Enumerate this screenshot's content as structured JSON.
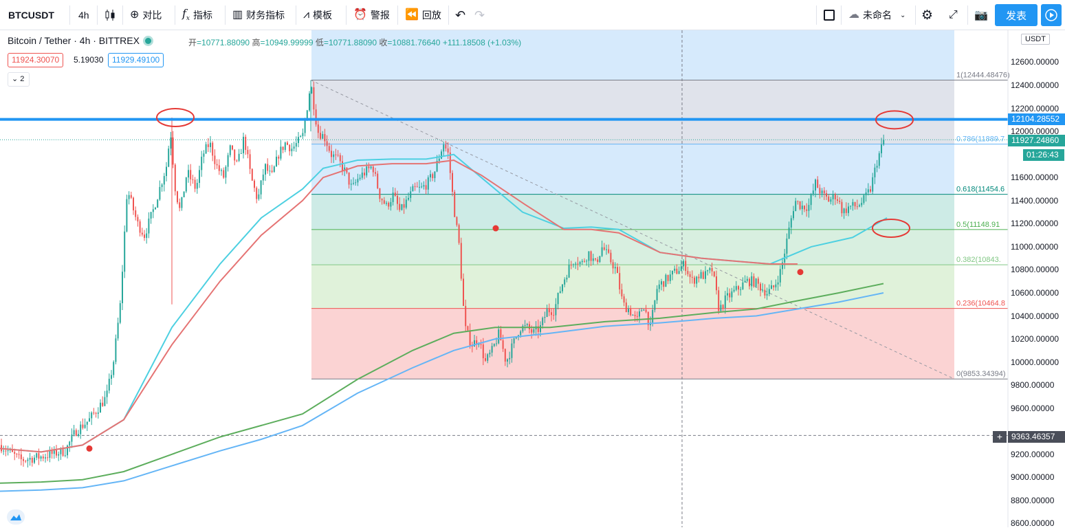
{
  "toolbar": {
    "symbol": "BTCUSDT",
    "interval": "4h",
    "compare": "对比",
    "indicators": "指标",
    "financials": "财务指标",
    "templates": "模板",
    "alert": "警报",
    "replay": "回放",
    "layout_name": "未命名",
    "publish": "发表"
  },
  "legend": {
    "title": "Bitcoin / Tether · 4h · BITTREX",
    "open_label": "开",
    "open": "10771.88090",
    "high_label": "高",
    "high": "10949.99999",
    "low_label": "低",
    "low": "10771.88090",
    "close_label": "收",
    "close": "10881.76640",
    "change": "+111.18508 (+1.03%)",
    "bid": "11924.30070",
    "spread": "5.19030",
    "ask": "11929.49100",
    "collapse": "2"
  },
  "price_axis": {
    "currency": "USDT",
    "labels": [
      "12600.00000",
      "12400.00000",
      "12200.00000",
      "12000.00000",
      "11600.00000",
      "11400.00000",
      "11200.00000",
      "11000.00000",
      "10800.00000",
      "10600.00000",
      "10400.00000",
      "10200.00000",
      "10000.00000",
      "9800.00000",
      "9600.00000",
      "9200.00000",
      "9000.00000",
      "8800.00000",
      "8600.00000"
    ],
    "horizontal_line": "12104.28552",
    "last_price": "11927.24860",
    "countdown": "01:26:43",
    "crosshair": "9363.46357"
  },
  "fib_labels": [
    "1(12444.48476)",
    "0.786(11889.7",
    "0.618(11454.6",
    "0.5(11148.91",
    "0.382(10843.",
    "0.236(10464.8",
    "0(9853.34394)"
  ],
  "chart_data": {
    "type": "candlestick",
    "symbol": "Bitcoin / Tether",
    "interval": "4h",
    "exchange": "BITTREX",
    "ylim": [
      8600,
      12700
    ],
    "last_bar": {
      "open": 10771.8809,
      "high": 10949.99999,
      "low": 10771.8809,
      "close": 10881.7664
    },
    "last_price": 11927.2486,
    "horizontal_line": 12104.28552,
    "crosshair_price": 9363.46357,
    "fib_retracement": {
      "high": 12444.48476,
      "low": 9853.34394,
      "levels": [
        {
          "ratio": 1,
          "price": 12444.48476
        },
        {
          "ratio": 0.786,
          "price": 11889.7
        },
        {
          "ratio": 0.618,
          "price": 11454.6
        },
        {
          "ratio": 0.5,
          "price": 11148.91
        },
        {
          "ratio": 0.382,
          "price": 10843.0
        },
        {
          "ratio": 0.236,
          "price": 10464.8
        },
        {
          "ratio": 0,
          "price": 9853.34394
        }
      ]
    },
    "price_path": [
      [
        0,
        9280
      ],
      [
        30,
        9150
      ],
      [
        60,
        9180
      ],
      [
        95,
        9230
      ],
      [
        110,
        9400
      ],
      [
        130,
        9500
      ],
      [
        155,
        9700
      ],
      [
        165,
        10000
      ],
      [
        175,
        10500
      ],
      [
        180,
        11000
      ],
      [
        185,
        11500
      ],
      [
        200,
        11200
      ],
      [
        210,
        11100
      ],
      [
        222,
        11300
      ],
      [
        232,
        11500
      ],
      [
        242,
        11700
      ],
      [
        248,
        12000
      ],
      [
        255,
        11500
      ],
      [
        262,
        11300
      ],
      [
        272,
        11650
      ],
      [
        285,
        11500
      ],
      [
        295,
        11800
      ],
      [
        305,
        11900
      ],
      [
        315,
        11700
      ],
      [
        325,
        11600
      ],
      [
        335,
        11850
      ],
      [
        345,
        11700
      ],
      [
        355,
        11950
      ],
      [
        365,
        11600
      ],
      [
        375,
        11400
      ],
      [
        385,
        11700
      ],
      [
        395,
        11600
      ],
      [
        405,
        11800
      ],
      [
        415,
        11900
      ],
      [
        425,
        11850
      ],
      [
        440,
        11950
      ],
      [
        452,
        12420
      ],
      [
        462,
        12000
      ],
      [
        472,
        11950
      ],
      [
        482,
        11800
      ],
      [
        492,
        11750
      ],
      [
        502,
        11650
      ],
      [
        512,
        11500
      ],
      [
        522,
        11600
      ],
      [
        532,
        11650
      ],
      [
        542,
        11700
      ],
      [
        552,
        11450
      ],
      [
        562,
        11350
      ],
      [
        572,
        11450
      ],
      [
        582,
        11300
      ],
      [
        592,
        11400
      ],
      [
        602,
        11500
      ],
      [
        612,
        11500
      ],
      [
        622,
        11550
      ],
      [
        632,
        11650
      ],
      [
        645,
        11900
      ],
      [
        652,
        11800
      ],
      [
        660,
        11350
      ],
      [
        668,
        11000
      ],
      [
        676,
        10300
      ],
      [
        686,
        10150
      ],
      [
        696,
        10200
      ],
      [
        706,
        10000
      ],
      [
        716,
        10100
      ],
      [
        726,
        10250
      ],
      [
        736,
        10000
      ],
      [
        746,
        10150
      ],
      [
        756,
        10300
      ],
      [
        766,
        10300
      ],
      [
        776,
        10250
      ],
      [
        786,
        10300
      ],
      [
        796,
        10450
      ],
      [
        806,
        10450
      ],
      [
        816,
        10650
      ],
      [
        826,
        10800
      ],
      [
        836,
        10900
      ],
      [
        846,
        10850
      ],
      [
        856,
        10950
      ],
      [
        866,
        10850
      ],
      [
        876,
        11000
      ],
      [
        886,
        10900
      ],
      [
        896,
        10800
      ],
      [
        906,
        10500
      ],
      [
        916,
        10450
      ],
      [
        926,
        10350
      ],
      [
        936,
        10500
      ],
      [
        946,
        10300
      ],
      [
        956,
        10650
      ],
      [
        966,
        10700
      ],
      [
        976,
        10750
      ],
      [
        986,
        10800
      ],
      [
        996,
        10850
      ],
      [
        1006,
        10700
      ],
      [
        1016,
        10750
      ],
      [
        1026,
        10750
      ],
      [
        1036,
        10800
      ],
      [
        1046,
        10450
      ],
      [
        1056,
        10550
      ],
      [
        1066,
        10600
      ],
      [
        1076,
        10650
      ],
      [
        1086,
        10700
      ],
      [
        1096,
        10700
      ],
      [
        1106,
        10650
      ],
      [
        1116,
        10600
      ],
      [
        1126,
        10650
      ],
      [
        1136,
        10800
      ],
      [
        1146,
        11100
      ],
      [
        1156,
        11400
      ],
      [
        1166,
        11350
      ],
      [
        1176,
        11350
      ],
      [
        1186,
        11550
      ],
      [
        1196,
        11450
      ],
      [
        1206,
        11400
      ],
      [
        1216,
        11450
      ],
      [
        1226,
        11300
      ],
      [
        1236,
        11350
      ],
      [
        1246,
        11350
      ],
      [
        1256,
        11400
      ],
      [
        1266,
        11500
      ],
      [
        1276,
        11750
      ],
      [
        1286,
        11930
      ]
    ],
    "ma_lines": {
      "teal_fast": [
        [
          0,
          9250
        ],
        [
          60,
          9220
        ],
        [
          120,
          9280
        ],
        [
          180,
          9500
        ],
        [
          250,
          10300
        ],
        [
          320,
          10850
        ],
        [
          380,
          11250
        ],
        [
          440,
          11500
        ],
        [
          470,
          11680
        ],
        [
          520,
          11750
        ],
        [
          570,
          11760
        ],
        [
          620,
          11760
        ],
        [
          660,
          11800
        ],
        [
          700,
          11600
        ],
        [
          760,
          11300
        ],
        [
          820,
          11160
        ],
        [
          860,
          11170
        ],
        [
          900,
          11150
        ],
        [
          960,
          10950
        ],
        [
          1020,
          10900
        ],
        [
          1080,
          10870
        ],
        [
          1120,
          10850
        ],
        [
          1180,
          11000
        ],
        [
          1240,
          11080
        ],
        [
          1290,
          11250
        ]
      ],
      "red_slow": [
        [
          0,
          9250
        ],
        [
          60,
          9220
        ],
        [
          120,
          9280
        ],
        [
          180,
          9500
        ],
        [
          250,
          10150
        ],
        [
          320,
          10700
        ],
        [
          380,
          11100
        ],
        [
          440,
          11400
        ],
        [
          470,
          11600
        ],
        [
          520,
          11700
        ],
        [
          570,
          11720
        ],
        [
          620,
          11720
        ],
        [
          660,
          11750
        ],
        [
          700,
          11620
        ],
        [
          760,
          11380
        ],
        [
          820,
          11150
        ],
        [
          860,
          11150
        ],
        [
          900,
          11120
        ],
        [
          960,
          10950
        ],
        [
          1020,
          10900
        ],
        [
          1080,
          10870
        ],
        [
          1120,
          10850
        ],
        [
          1160,
          10850
        ]
      ],
      "green_long": [
        [
          0,
          8950
        ],
        [
          60,
          8960
        ],
        [
          120,
          8980
        ],
        [
          180,
          9050
        ],
        [
          250,
          9200
        ],
        [
          320,
          9350
        ],
        [
          380,
          9450
        ],
        [
          440,
          9550
        ],
        [
          520,
          9850
        ],
        [
          600,
          10100
        ],
        [
          660,
          10250
        ],
        [
          720,
          10300
        ],
        [
          800,
          10300
        ],
        [
          880,
          10350
        ],
        [
          960,
          10380
        ],
        [
          1040,
          10430
        ],
        [
          1100,
          10460
        ],
        [
          1150,
          10520
        ],
        [
          1220,
          10600
        ],
        [
          1285,
          10680
        ]
      ],
      "blue_long": [
        [
          0,
          8880
        ],
        [
          60,
          8890
        ],
        [
          120,
          8910
        ],
        [
          180,
          8970
        ],
        [
          250,
          9100
        ],
        [
          320,
          9230
        ],
        [
          380,
          9330
        ],
        [
          440,
          9450
        ],
        [
          520,
          9730
        ],
        [
          600,
          9950
        ],
        [
          660,
          10100
        ],
        [
          720,
          10200
        ],
        [
          800,
          10250
        ],
        [
          880,
          10310
        ],
        [
          960,
          10340
        ],
        [
          1040,
          10380
        ],
        [
          1100,
          10400
        ],
        [
          1150,
          10450
        ],
        [
          1220,
          10520
        ],
        [
          1285,
          10600
        ]
      ]
    },
    "markers": [
      {
        "x": 130,
        "price": 9250
      },
      {
        "x": 721,
        "price": 11160
      },
      {
        "x": 1164,
        "price": 10780
      }
    ],
    "highlight_circles": [
      {
        "x": 255,
        "price": 12120
      },
      {
        "x": 1301,
        "price": 12100
      },
      {
        "x": 1296,
        "price": 11160
      }
    ],
    "trend_line": {
      "from": [
        452,
        12444.48476
      ],
      "to": [
        1388,
        9853.34394
      ]
    },
    "colors": {
      "up": "#26a69a",
      "down": "#ef5350",
      "horizontal_line": "#2196f3"
    }
  }
}
